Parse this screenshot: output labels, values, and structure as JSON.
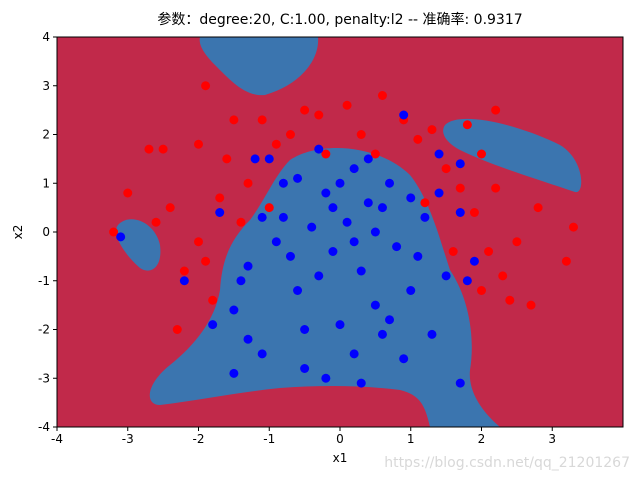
{
  "chart_data": {
    "type": "scatter",
    "title": "参数：degree:20, C:1.00, penalty:l2 -- 准确率: 0.9317",
    "x_label": "x1",
    "y_label": "x2",
    "xlim": [
      -4,
      4
    ],
    "ylim": [
      -4,
      4
    ],
    "xticks": [
      -4,
      -3,
      -2,
      -1,
      0,
      1,
      2,
      3
    ],
    "yticks": [
      -4,
      -3,
      -2,
      -1,
      0,
      1,
      2,
      3,
      4
    ],
    "grid": false,
    "watermark": "https://blog.csdn.net/qq_21201267",
    "series": [
      {
        "color": "#ff0000",
        "x": [
          -3.2,
          -3.0,
          -2.7,
          -2.5,
          -2.4,
          -2.3,
          -2.2,
          -2.0,
          -1.9,
          -1.8,
          -1.7,
          -1.5,
          -1.4,
          -1.3,
          -1.1,
          -0.9,
          -0.7,
          -0.5,
          -0.3,
          0.1,
          0.3,
          0.6,
          0.9,
          1.1,
          1.3,
          1.5,
          1.7,
          1.9,
          2.0,
          2.2,
          2.1,
          2.3,
          2.0,
          2.5,
          2.4,
          2.7,
          3.3,
          3.2,
          1.6,
          1.2,
          -1.0,
          -2.0,
          -2.6,
          1.8,
          -0.2,
          0.5,
          2.8,
          -1.6,
          2.2,
          -1.9
        ],
        "y": [
          0.0,
          0.8,
          1.7,
          1.7,
          0.5,
          -2.0,
          -0.8,
          1.8,
          3.0,
          -1.4,
          0.7,
          2.3,
          0.2,
          1.0,
          2.3,
          1.8,
          2.0,
          2.5,
          2.4,
          2.6,
          2.0,
          2.8,
          2.3,
          1.9,
          2.1,
          1.3,
          0.9,
          0.4,
          1.6,
          2.5,
          -0.4,
          -0.9,
          -1.2,
          -0.2,
          -1.4,
          -1.5,
          0.1,
          -0.6,
          -0.4,
          0.6,
          0.5,
          -0.2,
          0.2,
          2.2,
          1.6,
          1.6,
          0.5,
          1.5,
          0.9,
          -0.6
        ]
      },
      {
        "color": "#0000ff",
        "x": [
          -3.1,
          -2.2,
          -1.8,
          -1.5,
          -1.5,
          -1.7,
          -1.3,
          -1.1,
          -1.0,
          -0.8,
          -0.6,
          -0.5,
          -0.3,
          -0.2,
          -0.1,
          0.0,
          0.1,
          0.2,
          0.2,
          0.3,
          0.4,
          0.5,
          0.6,
          0.7,
          0.8,
          0.9,
          1.0,
          1.2,
          1.3,
          1.4,
          1.5,
          1.7,
          1.8,
          1.9,
          -0.9,
          -0.4,
          0.0,
          -0.6,
          0.5,
          -1.1,
          -0.2,
          0.7,
          0.2,
          -0.7,
          1.0,
          -1.2,
          0.4,
          -0.5,
          1.4,
          1.7,
          1.7,
          -0.3,
          0.9,
          -1.4,
          0.3,
          -0.8,
          0.6,
          -1.3,
          1.1,
          -0.1
        ],
        "y": [
          -0.1,
          -1.0,
          -1.9,
          -2.9,
          -1.6,
          0.4,
          -0.7,
          -2.5,
          1.5,
          0.3,
          -1.2,
          -2.8,
          1.7,
          0.8,
          -0.4,
          -1.9,
          0.2,
          1.3,
          -2.5,
          -0.8,
          0.6,
          -1.5,
          -2.1,
          1.0,
          -0.3,
          2.4,
          -1.2,
          0.3,
          -2.1,
          1.6,
          -0.9,
          -3.1,
          -1.0,
          -0.6,
          -0.2,
          0.1,
          1.0,
          1.1,
          0.0,
          0.3,
          -3.0,
          -1.8,
          -0.2,
          -0.5,
          0.7,
          1.5,
          1.5,
          -2.0,
          0.8,
          1.4,
          0.4,
          -0.9,
          -2.6,
          -1.0,
          -3.1,
          1.0,
          0.5,
          -2.2,
          -0.5,
          0.5
        ]
      }
    ]
  }
}
